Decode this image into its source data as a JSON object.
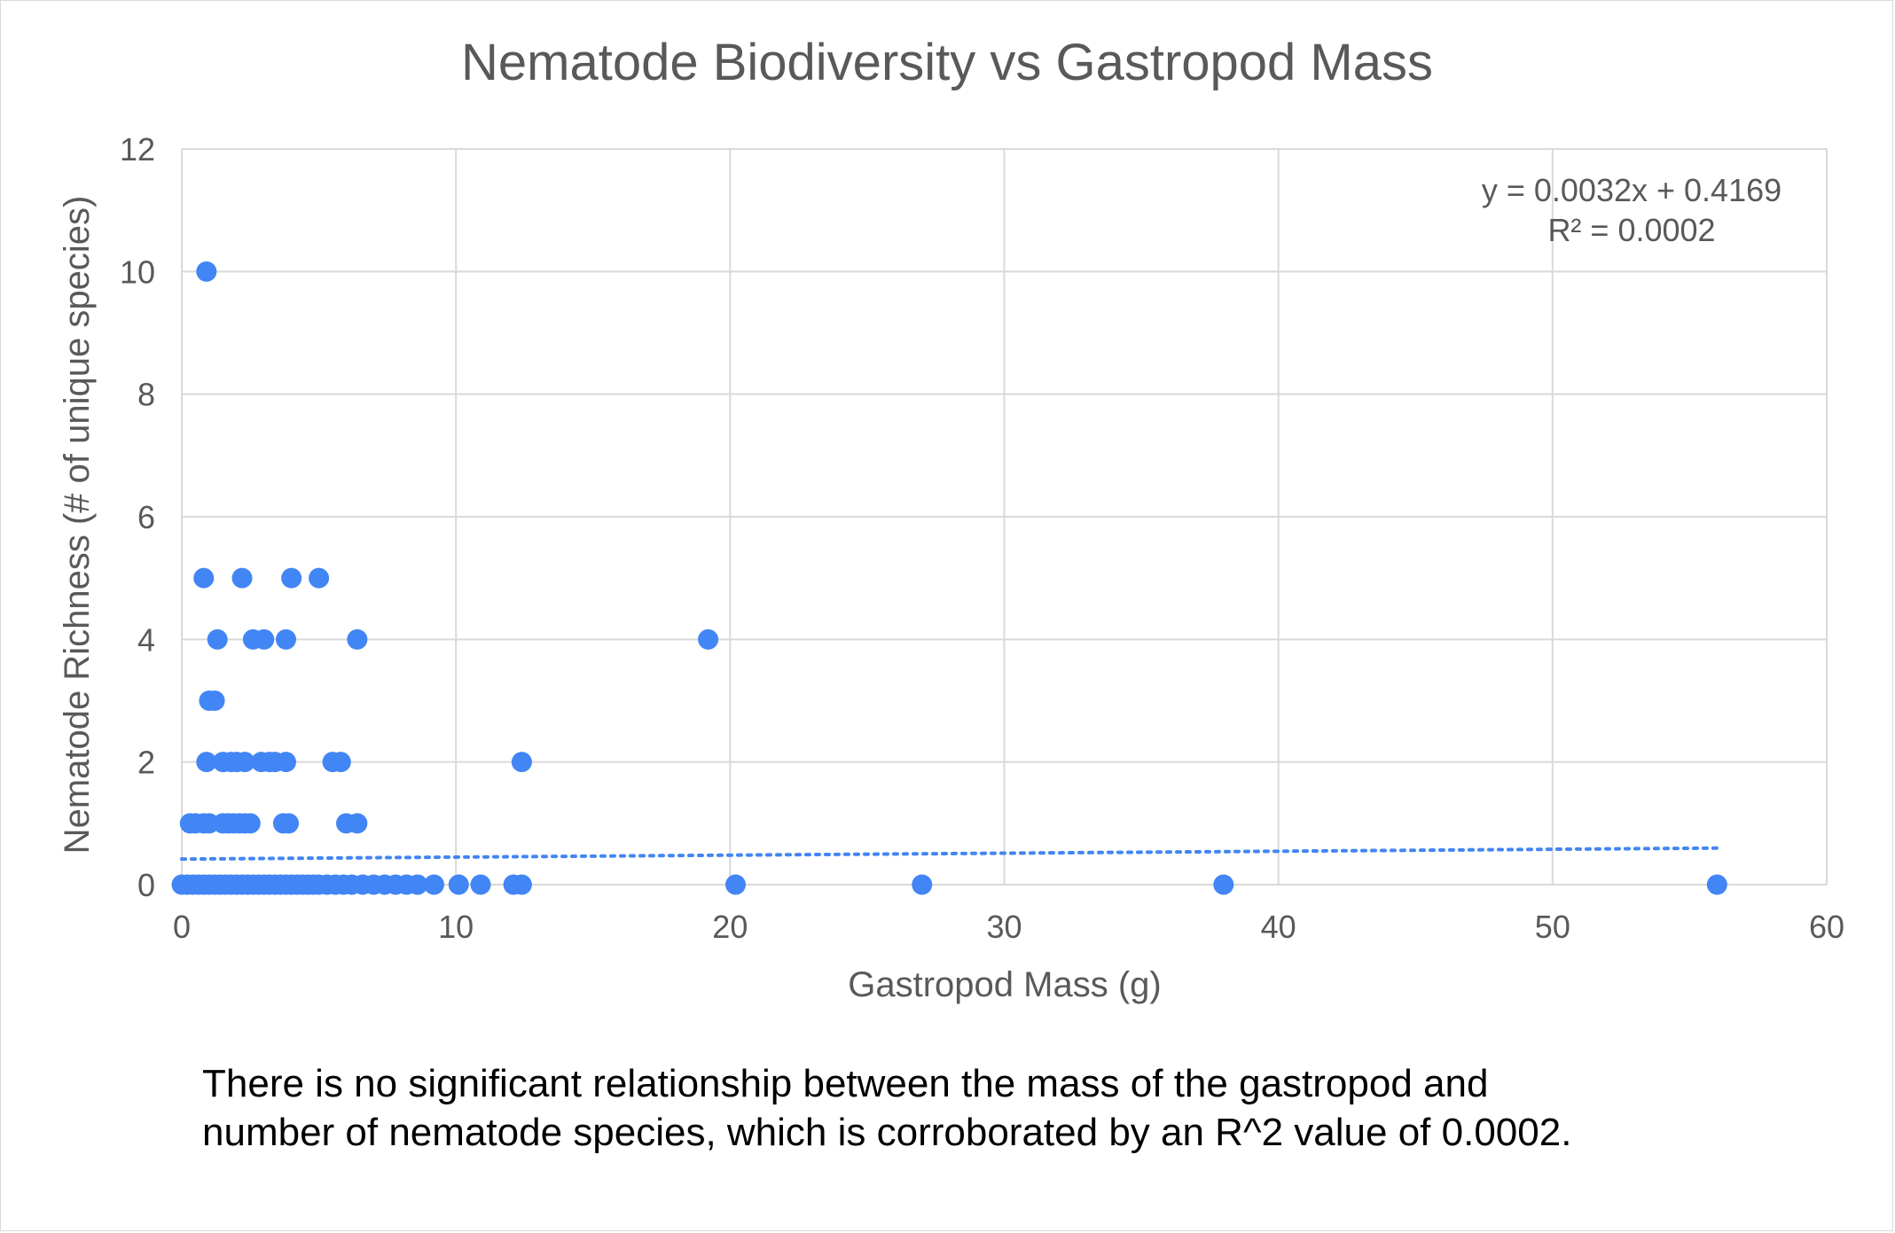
{
  "chart_data": {
    "type": "scatter",
    "title": "Nematode Biodiversity vs Gastropod Mass",
    "xlabel": "Gastropod Mass (g)",
    "ylabel": "Nematode Richness (# of unique species)",
    "xlim": [
      0,
      60
    ],
    "ylim": [
      0,
      12
    ],
    "xticks": [
      0,
      10,
      20,
      30,
      40,
      50,
      60
    ],
    "yticks": [
      0,
      2,
      4,
      6,
      8,
      10,
      12
    ],
    "grid": true,
    "legend": "none",
    "color": "#4285F4",
    "trendline": {
      "type": "linear",
      "slope": 0.0032,
      "intercept": 0.4169,
      "x_range": [
        0,
        56
      ],
      "style": "dotted",
      "equation_label": "y = 0.0032x + 0.4169",
      "r2_label": "R² = 0.0002"
    },
    "series": [
      {
        "points": [
          [
            0.9,
            10
          ],
          [
            0.8,
            5
          ],
          [
            2.2,
            5
          ],
          [
            4.0,
            5
          ],
          [
            5.0,
            5
          ],
          [
            1.3,
            4
          ],
          [
            2.6,
            4
          ],
          [
            3.0,
            4
          ],
          [
            3.8,
            4
          ],
          [
            6.4,
            4
          ],
          [
            19.2,
            4
          ],
          [
            1.0,
            3
          ],
          [
            1.2,
            3
          ],
          [
            0.9,
            2
          ],
          [
            1.5,
            2
          ],
          [
            1.8,
            2
          ],
          [
            2.0,
            2
          ],
          [
            2.3,
            2
          ],
          [
            2.9,
            2
          ],
          [
            3.2,
            2
          ],
          [
            3.4,
            2
          ],
          [
            3.8,
            2
          ],
          [
            5.5,
            2
          ],
          [
            5.8,
            2
          ],
          [
            12.4,
            2
          ],
          [
            0.3,
            1
          ],
          [
            0.5,
            1
          ],
          [
            0.8,
            1
          ],
          [
            1.0,
            1
          ],
          [
            1.5,
            1
          ],
          [
            1.7,
            1
          ],
          [
            1.9,
            1
          ],
          [
            2.1,
            1
          ],
          [
            2.3,
            1
          ],
          [
            2.5,
            1
          ],
          [
            3.7,
            1
          ],
          [
            3.9,
            1
          ],
          [
            6.0,
            1
          ],
          [
            6.4,
            1
          ],
          [
            0.0,
            0
          ],
          [
            0.2,
            0
          ],
          [
            0.4,
            0
          ],
          [
            0.6,
            0
          ],
          [
            0.8,
            0
          ],
          [
            1.0,
            0
          ],
          [
            1.2,
            0
          ],
          [
            1.4,
            0
          ],
          [
            1.6,
            0
          ],
          [
            1.8,
            0
          ],
          [
            2.0,
            0
          ],
          [
            2.2,
            0
          ],
          [
            2.4,
            0
          ],
          [
            2.6,
            0
          ],
          [
            2.8,
            0
          ],
          [
            3.0,
            0
          ],
          [
            3.2,
            0
          ],
          [
            3.4,
            0
          ],
          [
            3.6,
            0
          ],
          [
            3.8,
            0
          ],
          [
            4.0,
            0
          ],
          [
            4.2,
            0
          ],
          [
            4.4,
            0
          ],
          [
            4.6,
            0
          ],
          [
            4.8,
            0
          ],
          [
            5.0,
            0
          ],
          [
            5.3,
            0
          ],
          [
            5.6,
            0
          ],
          [
            5.9,
            0
          ],
          [
            6.2,
            0
          ],
          [
            6.6,
            0
          ],
          [
            7.0,
            0
          ],
          [
            7.4,
            0
          ],
          [
            7.8,
            0
          ],
          [
            8.2,
            0
          ],
          [
            8.6,
            0
          ],
          [
            9.2,
            0
          ],
          [
            10.1,
            0
          ],
          [
            10.9,
            0
          ],
          [
            12.1,
            0
          ],
          [
            12.4,
            0
          ],
          [
            20.2,
            0
          ],
          [
            27.0,
            0
          ],
          [
            38.0,
            0
          ],
          [
            56.0,
            0
          ]
        ]
      }
    ]
  },
  "caption": {
    "line1": "There is no significant relationship between the mass of the gastropod and",
    "line2": "number of nematode species, which is corroborated by an R^2 value of 0.0002."
  }
}
